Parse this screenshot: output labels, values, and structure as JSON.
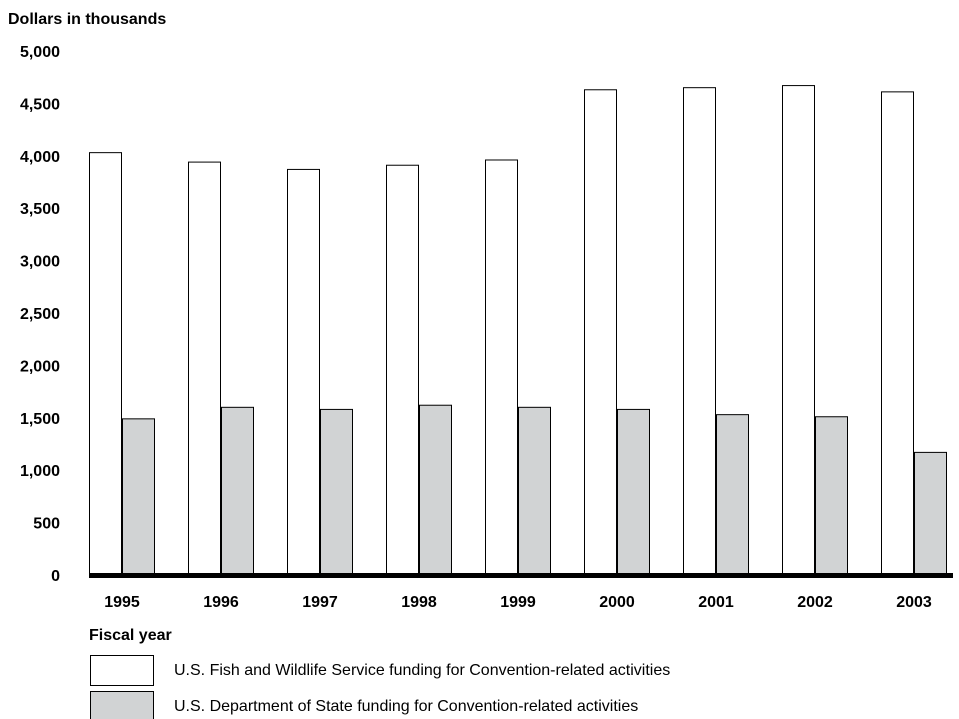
{
  "chart_data": {
    "type": "bar",
    "ylabel": "Dollars in thousands",
    "xlabel": "Fiscal year",
    "ylim": [
      0,
      5000
    ],
    "yticks": [
      "0",
      "500",
      "1,000",
      "1,500",
      "2,000",
      "2,500",
      "3,000",
      "3,500",
      "4,000",
      "4,500",
      "5,000"
    ],
    "categories": [
      "1995",
      "1996",
      "1997",
      "1998",
      "1999",
      "2000",
      "2001",
      "2002",
      "2003"
    ],
    "series": [
      {
        "name": "U.S. Fish and Wildlife Service funding for Convention-related activities",
        "color": "#ffffff",
        "values": [
          4030,
          3940,
          3870,
          3910,
          3960,
          4630,
          4650,
          4670,
          4610
        ]
      },
      {
        "name": "U.S. Department of State funding for Convention-related activities",
        "color": "#d1d3d4",
        "values": [
          1490,
          1600,
          1580,
          1620,
          1600,
          1580,
          1530,
          1510,
          1170
        ]
      }
    ],
    "grid": false,
    "legend": "bottom-left"
  }
}
